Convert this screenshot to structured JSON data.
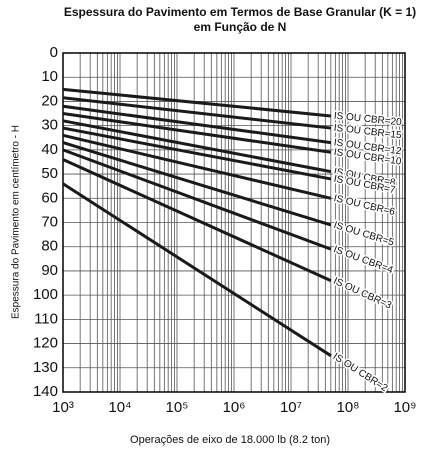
{
  "chart_data": {
    "type": "line",
    "title": [
      "Espessura do Pavimento em Termos de Base Granular (K = 1)",
      "em Função de N"
    ],
    "xlabel": "Operações de eixo de 18.000 lb (8.2 ton)",
    "ylabel": "Espessura do Pavimento em centímetro - H",
    "x": [
      1000,
      50000000
    ],
    "xlog": true,
    "xlim": [
      1000,
      1000000000
    ],
    "xticks": [
      {
        "value": 1000,
        "label": "10³"
      },
      {
        "value": 10000,
        "label": "10⁴"
      },
      {
        "value": 100000,
        "label": "10⁵"
      },
      {
        "value": 1000000,
        "label": "10⁶"
      },
      {
        "value": 10000000,
        "label": "10⁷"
      },
      {
        "value": 100000000,
        "label": "10⁸"
      },
      {
        "value": 1000000000,
        "label": "10⁹"
      }
    ],
    "ylim": [
      140,
      0
    ],
    "yticks": [
      0,
      10,
      20,
      30,
      40,
      50,
      60,
      70,
      80,
      90,
      100,
      110,
      120,
      130,
      140
    ],
    "grid": true,
    "line_color": "#1a1a1a",
    "series": [
      {
        "name": "IS OU CBR=20",
        "values": [
          15,
          26
        ]
      },
      {
        "name": "IS OU CBR=15",
        "values": [
          18.5,
          31
        ]
      },
      {
        "name": "IS OU CBR=12",
        "values": [
          22,
          37
        ]
      },
      {
        "name": "IS OU CBR=10",
        "values": [
          25,
          41
        ]
      },
      {
        "name": "IS OU CBR=8",
        "values": [
          28,
          49
        ]
      },
      {
        "name": "IS OU CBR=7",
        "values": [
          31,
          52
        ]
      },
      {
        "name": "IS OU CBR=6",
        "values": [
          34,
          60
        ]
      },
      {
        "name": "IS OU CBR=5",
        "values": [
          37,
          71
        ]
      },
      {
        "name": "IS OU CBR=4",
        "values": [
          40,
          81
        ]
      },
      {
        "name": "IS OU CBR=3",
        "values": [
          44,
          94
        ]
      },
      {
        "name": "IS OU CBR=2",
        "values": [
          54,
          125
        ]
      }
    ]
  }
}
